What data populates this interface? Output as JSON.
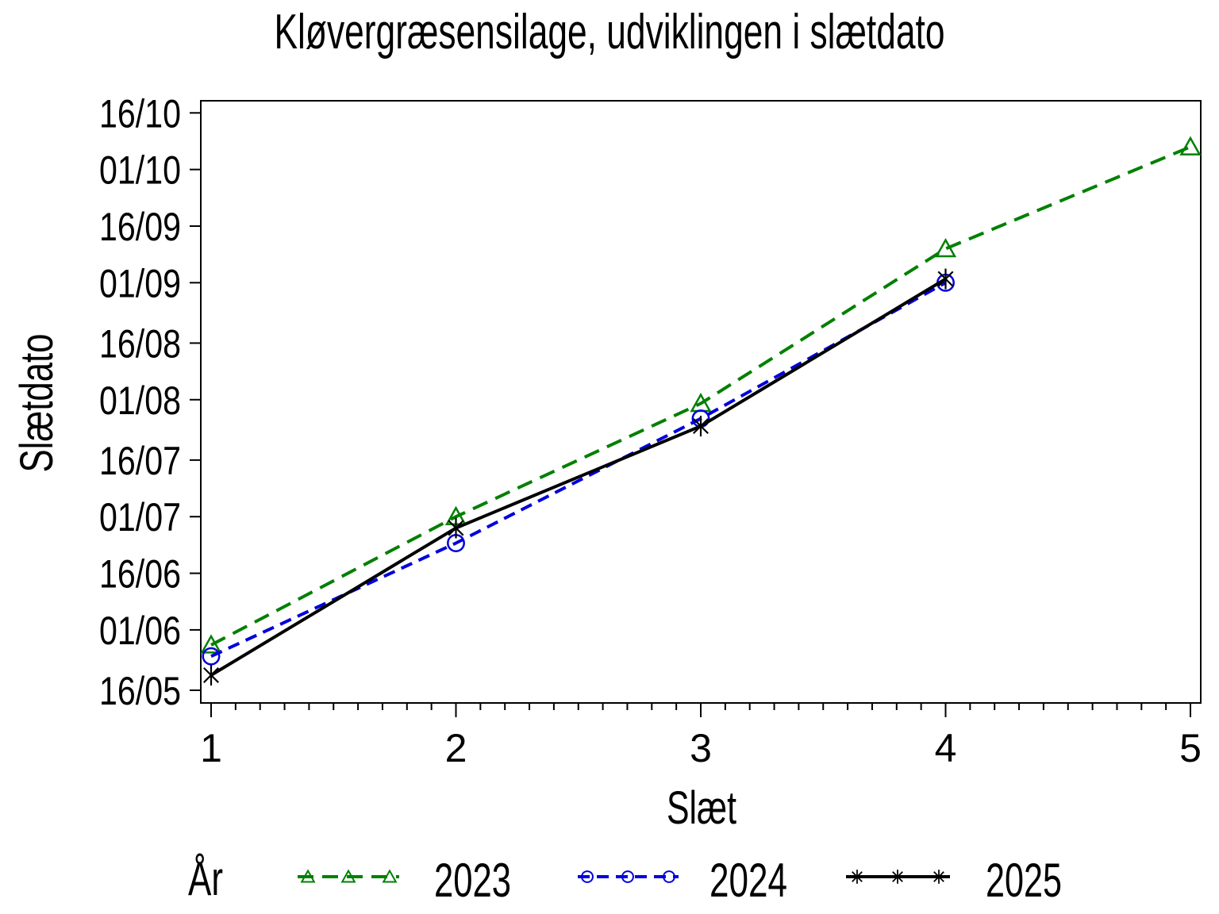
{
  "page": {
    "background": "#ffffff"
  },
  "chart_data": {
    "type": "line",
    "title": "Kløvergræsensilage, udviklingen i slætdato",
    "xlabel": "Slæt",
    "ylabel": "Slætdato",
    "legend_title": "År",
    "legend_position": "bottom",
    "grid": false,
    "axis_color": "#000000",
    "x_tick_labels": [
      "1",
      "2",
      "3",
      "4",
      "5"
    ],
    "y_tick_labels": [
      "16/05",
      "01/06",
      "16/06",
      "01/07",
      "16/07",
      "01/08",
      "16/08",
      "01/09",
      "16/09",
      "01/10",
      "16/10"
    ],
    "y_axis_range": [
      "16/05",
      "16/10"
    ],
    "x_axis_range": [
      1,
      5
    ],
    "series": [
      {
        "name": "2023",
        "color": "#008000",
        "line_style": "dashed",
        "marker": "triangle",
        "x": [
          1,
          2,
          3,
          4,
          5
        ],
        "dates": [
          "28/05",
          "01/07",
          "31/07",
          "10/09",
          "07/10"
        ]
      },
      {
        "name": "2024",
        "color": "#0000dd",
        "line_style": "dashed",
        "marker": "circle",
        "x": [
          1,
          2,
          3,
          4
        ],
        "dates": [
          "25/05",
          "24/06",
          "27/07",
          "01/09"
        ]
      },
      {
        "name": "2025",
        "color": "#000000",
        "line_style": "solid",
        "marker": "star",
        "x": [
          1,
          2,
          3,
          4
        ],
        "dates": [
          "20/05",
          "28/06",
          "25/07",
          "02/09"
        ]
      }
    ]
  }
}
